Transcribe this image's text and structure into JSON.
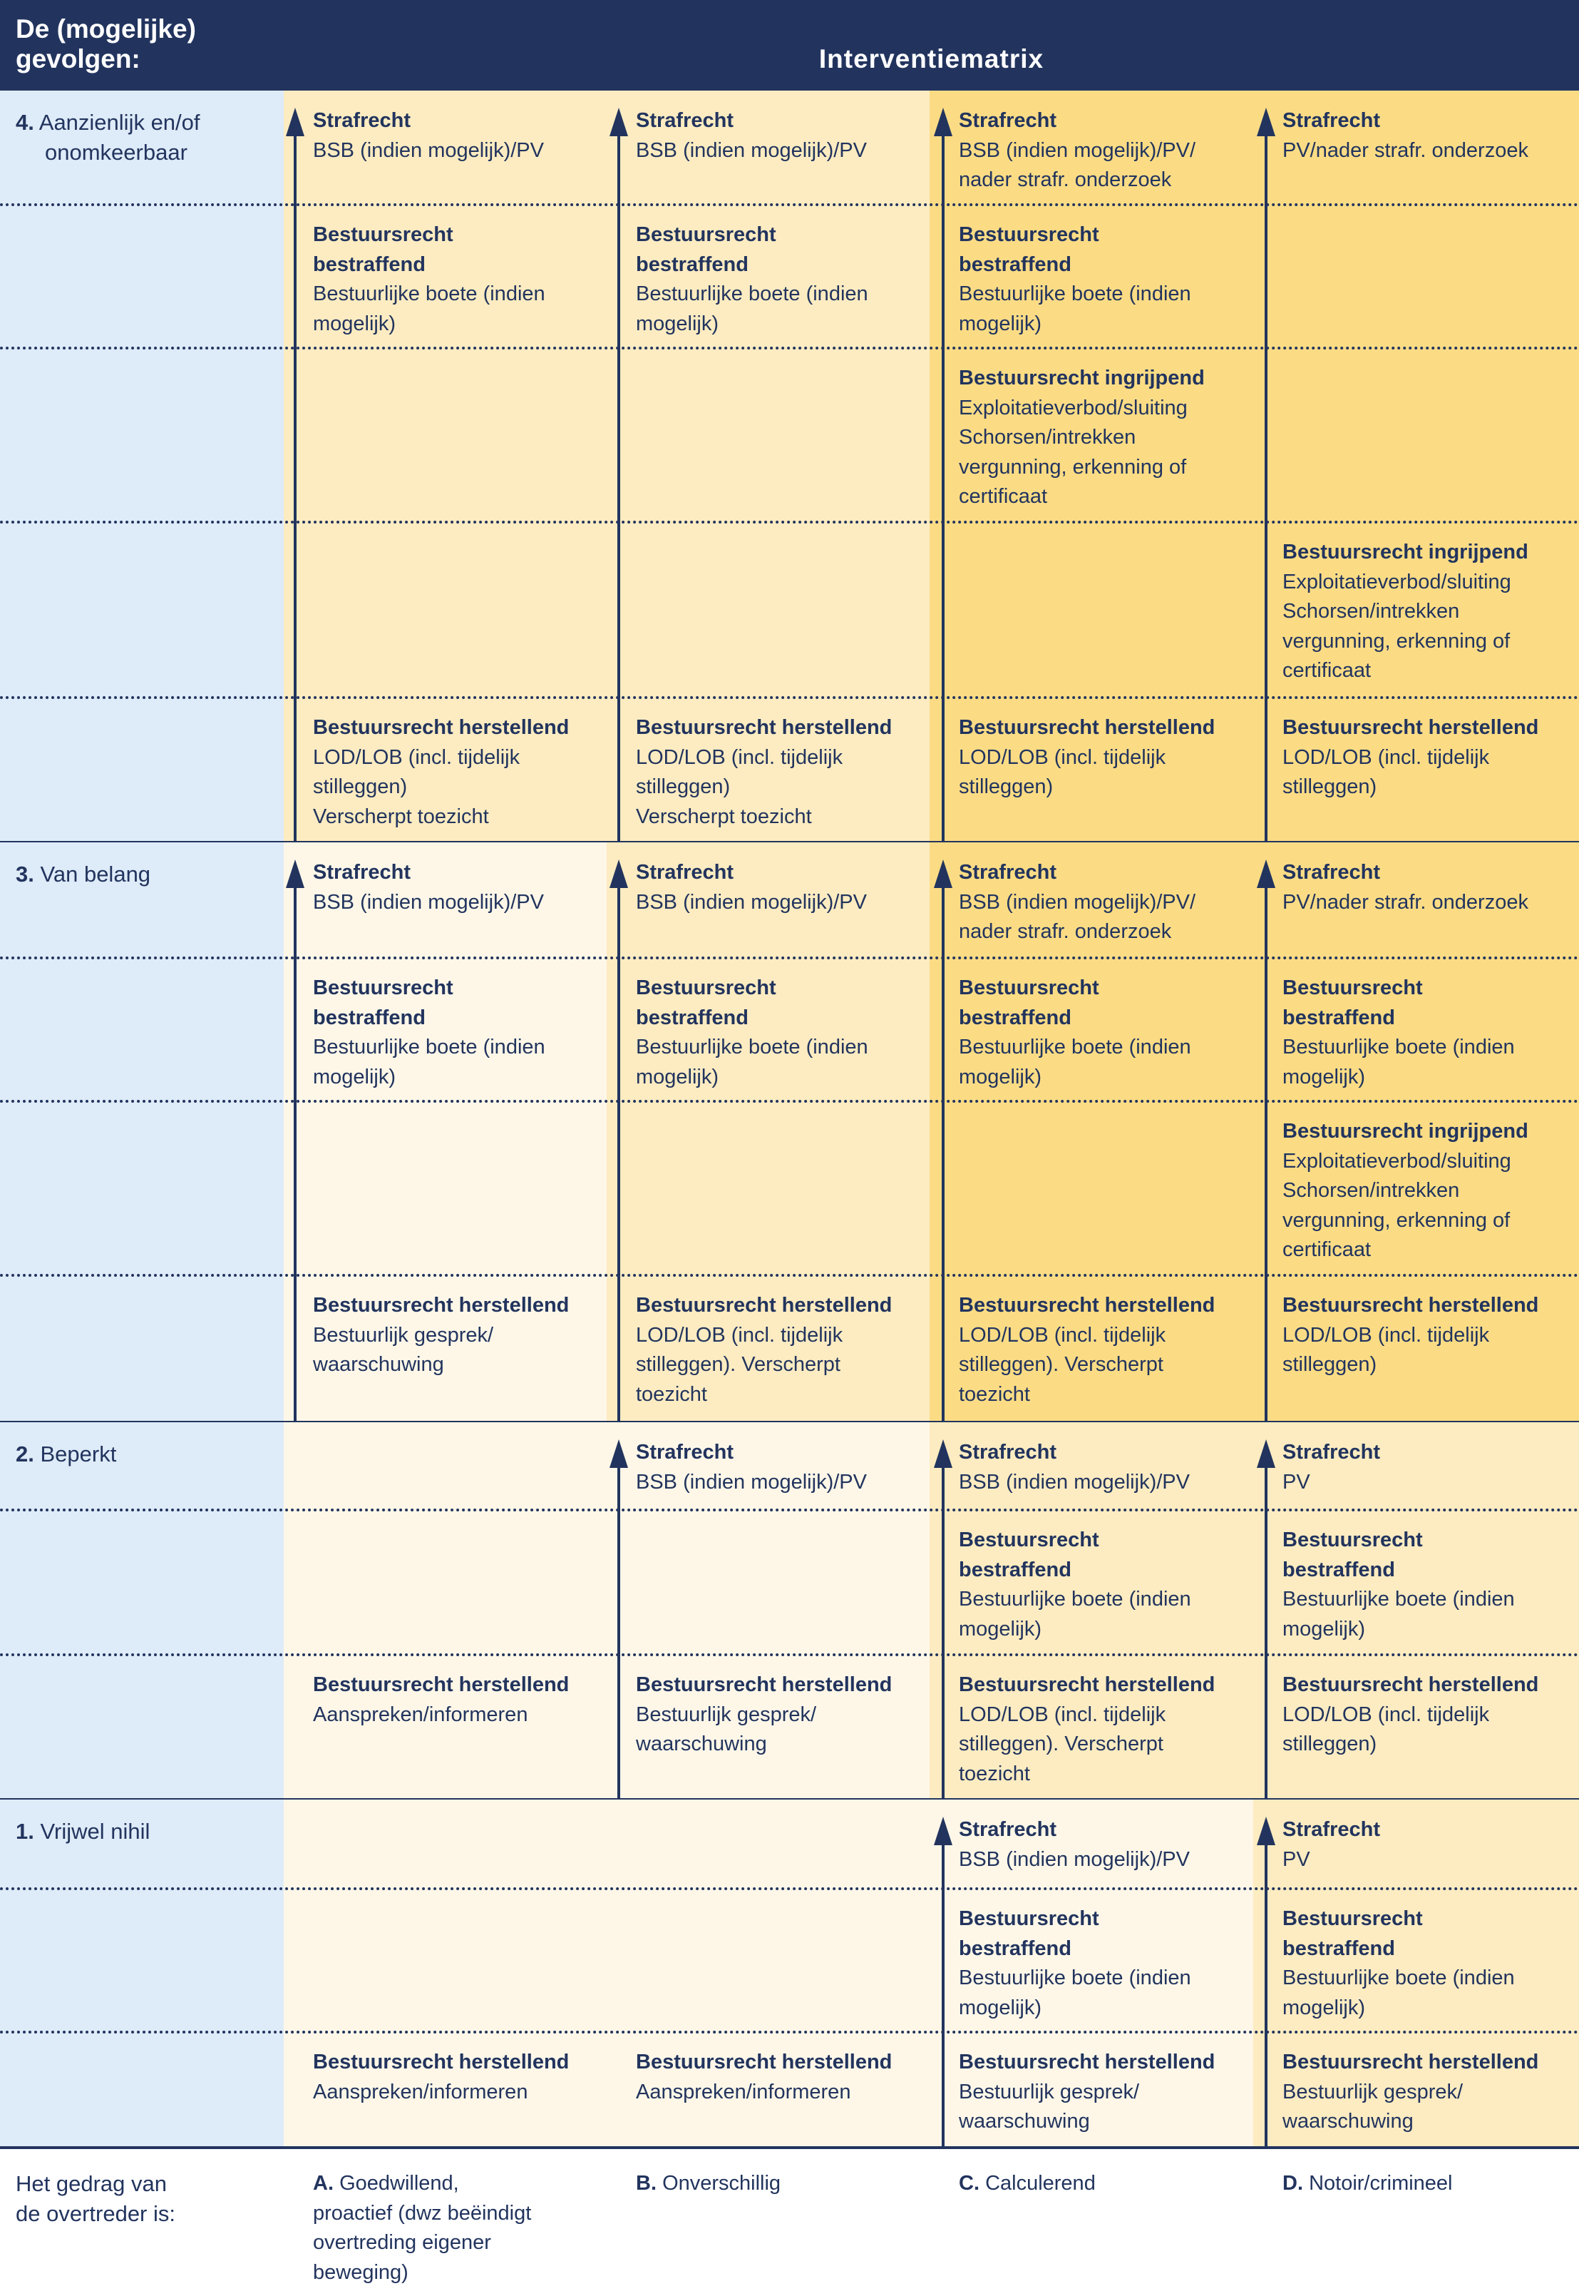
{
  "header": {
    "left_title": "De (mogelijke) gevolgen:",
    "title": "Interventiematrix"
  },
  "colors": {
    "navy": "#22345e",
    "label_column": "#deebf8",
    "cream": "#fef7e8",
    "light_yellow": "#fdecc1",
    "yellow": "#fbdc85"
  },
  "rows": [
    {
      "number": "4.",
      "label_lines": [
        "Aanzienlijk en/of",
        "onomkeerbaar"
      ],
      "column_fills": [
        "#fdecc1",
        "#fdecc1",
        "#fbdc85",
        "#fbdc85"
      ],
      "arrows": [
        true,
        true,
        true,
        true
      ],
      "subrows": [
        [
          {
            "title": [
              "Strafrecht"
            ],
            "body": [
              "BSB (indien mogelijk)/PV"
            ]
          },
          {
            "title": [
              "Strafrecht"
            ],
            "body": [
              "BSB (indien mogelijk)/PV"
            ]
          },
          {
            "title": [
              "Strafrecht"
            ],
            "body": [
              "BSB (indien mogelijk)/PV/",
              "nader strafr. onderzoek"
            ]
          },
          {
            "title": [
              "Strafrecht"
            ],
            "body": [
              "PV/nader strafr. onderzoek"
            ]
          }
        ],
        [
          {
            "title": [
              "Bestuursrecht",
              "bestraffend"
            ],
            "body": [
              "Bestuurlijke boete (indien",
              "mogelijk)"
            ]
          },
          {
            "title": [
              "Bestuursrecht",
              "bestraffend"
            ],
            "body": [
              "Bestuurlijke boete (indien",
              "mogelijk)"
            ]
          },
          {
            "title": [
              "Bestuursrecht",
              "bestraffend"
            ],
            "body": [
              "Bestuurlijke boete (indien",
              "mogelijk)"
            ]
          },
          null
        ],
        [
          null,
          null,
          {
            "title": [
              "Bestuursrecht ingrijpend"
            ],
            "body": [
              "Exploitatieverbod/sluiting",
              "Schorsen/intrekken",
              "vergunning, erkenning of",
              "certificaat"
            ]
          },
          null
        ],
        [
          null,
          null,
          null,
          {
            "title": [
              "Bestuursrecht ingrijpend"
            ],
            "body": [
              "Exploitatieverbod/sluiting",
              "Schorsen/intrekken",
              "vergunning, erkenning of",
              "certificaat"
            ]
          }
        ],
        [
          {
            "title": [
              "Bestuursrecht herstellend"
            ],
            "body": [
              "LOD/LOB (incl. tijdelijk",
              "stilleggen)",
              "Verscherpt toezicht"
            ]
          },
          {
            "title": [
              "Bestuursrecht herstellend"
            ],
            "body": [
              "LOD/LOB (incl. tijdelijk",
              "stilleggen)",
              "Verscherpt toezicht"
            ]
          },
          {
            "title": [
              "Bestuursrecht herstellend"
            ],
            "body": [
              "LOD/LOB (incl. tijdelijk",
              "stilleggen)"
            ]
          },
          {
            "title": [
              "Bestuursrecht herstellend"
            ],
            "body": [
              "LOD/LOB (incl. tijdelijk",
              "stilleggen)"
            ]
          }
        ]
      ]
    },
    {
      "number": "3.",
      "label_lines": [
        "Van belang"
      ],
      "column_fills": [
        "#fef7e8",
        "#fdecc1",
        "#fbdc85",
        "#fbdc85"
      ],
      "arrows": [
        true,
        true,
        true,
        true
      ],
      "subrows": [
        [
          {
            "title": [
              "Strafrecht"
            ],
            "body": [
              "BSB (indien mogelijk)/PV"
            ]
          },
          {
            "title": [
              "Strafrecht"
            ],
            "body": [
              "BSB (indien mogelijk)/PV"
            ]
          },
          {
            "title": [
              "Strafrecht"
            ],
            "body": [
              "BSB (indien mogelijk)/PV/",
              "nader strafr. onderzoek"
            ]
          },
          {
            "title": [
              "Strafrecht"
            ],
            "body": [
              "PV/nader strafr. onderzoek"
            ]
          }
        ],
        [
          {
            "title": [
              "Bestuursrecht",
              "bestraffend"
            ],
            "body": [
              "Bestuurlijke boete (indien",
              "mogelijk)"
            ]
          },
          {
            "title": [
              "Bestuursrecht",
              "bestraffend"
            ],
            "body": [
              "Bestuurlijke boete (indien",
              "mogelijk)"
            ]
          },
          {
            "title": [
              "Bestuursrecht",
              "bestraffend"
            ],
            "body": [
              "Bestuurlijke boete (indien",
              "mogelijk)"
            ]
          },
          {
            "title": [
              "Bestuursrecht",
              "bestraffend"
            ],
            "body": [
              "Bestuurlijke boete (indien",
              "mogelijk)"
            ]
          }
        ],
        [
          null,
          null,
          null,
          {
            "title": [
              "Bestuursrecht ingrijpend"
            ],
            "body": [
              "Exploitatieverbod/sluiting",
              "Schorsen/intrekken",
              "vergunning, erkenning of",
              "certificaat"
            ]
          }
        ],
        [
          {
            "title": [
              "Bestuursrecht herstellend"
            ],
            "body": [
              "Bestuurlijk gesprek/",
              "waarschuwing"
            ]
          },
          {
            "title": [
              "Bestuursrecht herstellend"
            ],
            "body": [
              "LOD/LOB (incl. tijdelijk",
              "stilleggen). Verscherpt",
              "toezicht"
            ]
          },
          {
            "title": [
              "Bestuursrecht herstellend"
            ],
            "body": [
              "LOD/LOB (incl. tijdelijk",
              "stilleggen). Verscherpt",
              "toezicht"
            ]
          },
          {
            "title": [
              "Bestuursrecht herstellend"
            ],
            "body": [
              "LOD/LOB (incl. tijdelijk",
              "stilleggen)"
            ]
          }
        ]
      ]
    },
    {
      "number": "2.",
      "label_lines": [
        "Beperkt"
      ],
      "column_fills": [
        "#fef7e8",
        "#fef7e8",
        "#fdecc1",
        "#fdecc1"
      ],
      "arrows": [
        false,
        true,
        true,
        true
      ],
      "subrows": [
        [
          null,
          {
            "title": [
              "Strafrecht"
            ],
            "body": [
              "BSB (indien mogelijk)/PV"
            ]
          },
          {
            "title": [
              "Strafrecht"
            ],
            "body": [
              "BSB (indien mogelijk)/PV"
            ]
          },
          {
            "title": [
              "Strafrecht"
            ],
            "body": [
              "PV"
            ]
          }
        ],
        [
          null,
          null,
          {
            "title": [
              "Bestuursrecht",
              "bestraffend"
            ],
            "body": [
              "Bestuurlijke boete (indien",
              "mogelijk)"
            ]
          },
          {
            "title": [
              "Bestuursrecht",
              "bestraffend"
            ],
            "body": [
              "Bestuurlijke boete (indien",
              "mogelijk)"
            ]
          }
        ],
        [
          {
            "title": [
              "Bestuursrecht herstellend"
            ],
            "body": [
              "Aanspreken/informeren"
            ]
          },
          {
            "title": [
              "Bestuursrecht herstellend"
            ],
            "body": [
              "Bestuurlijk gesprek/",
              "waarschuwing"
            ]
          },
          {
            "title": [
              "Bestuursrecht herstellend"
            ],
            "body": [
              "LOD/LOB (incl. tijdelijk",
              "stilleggen). Verscherpt",
              "toezicht"
            ]
          },
          {
            "title": [
              "Bestuursrecht herstellend"
            ],
            "body": [
              "LOD/LOB (incl. tijdelijk",
              "stilleggen)"
            ]
          }
        ]
      ]
    },
    {
      "number": "1.",
      "label_lines": [
        "Vrijwel nihil"
      ],
      "column_fills": [
        "#fef7e8",
        "#fef7e8",
        "#fef7e8",
        "#fdecc1"
      ],
      "arrows": [
        false,
        false,
        true,
        true
      ],
      "subrows": [
        [
          null,
          null,
          {
            "title": [
              "Strafrecht"
            ],
            "body": [
              "BSB (indien mogelijk)/PV"
            ]
          },
          {
            "title": [
              "Strafrecht"
            ],
            "body": [
              "PV"
            ]
          }
        ],
        [
          null,
          null,
          {
            "title": [
              "Bestuursrecht",
              "bestraffend"
            ],
            "body": [
              "Bestuurlijke boete (indien",
              "mogelijk)"
            ]
          },
          {
            "title": [
              "Bestuursrecht",
              "bestraffend"
            ],
            "body": [
              "Bestuurlijke boete (indien",
              "mogelijk)"
            ]
          }
        ],
        [
          {
            "title": [
              "Bestuursrecht herstellend"
            ],
            "body": [
              "Aanspreken/informeren"
            ]
          },
          {
            "title": [
              "Bestuursrecht herstellend"
            ],
            "body": [
              "Aanspreken/informeren"
            ]
          },
          {
            "title": [
              "Bestuursrecht herstellend"
            ],
            "body": [
              "Bestuurlijk gesprek/",
              "waarschuwing"
            ]
          },
          {
            "title": [
              "Bestuursrecht herstellend"
            ],
            "body": [
              "Bestuurlijk gesprek/",
              "waarschuwing"
            ]
          }
        ]
      ]
    }
  ],
  "footer": {
    "label_lines": [
      "Het gedrag van",
      "de overtreder is:"
    ],
    "columns": [
      {
        "letter": "A.",
        "lines": [
          "Goedwillend,",
          "proactief (dwz beëindigt",
          "overtreding eigener",
          "beweging)"
        ]
      },
      {
        "letter": "B.",
        "lines": [
          "Onverschillig"
        ]
      },
      {
        "letter": "C.",
        "lines": [
          "Calculerend"
        ]
      },
      {
        "letter": "D.",
        "lines": [
          "Notoir/crimineel"
        ]
      }
    ]
  }
}
